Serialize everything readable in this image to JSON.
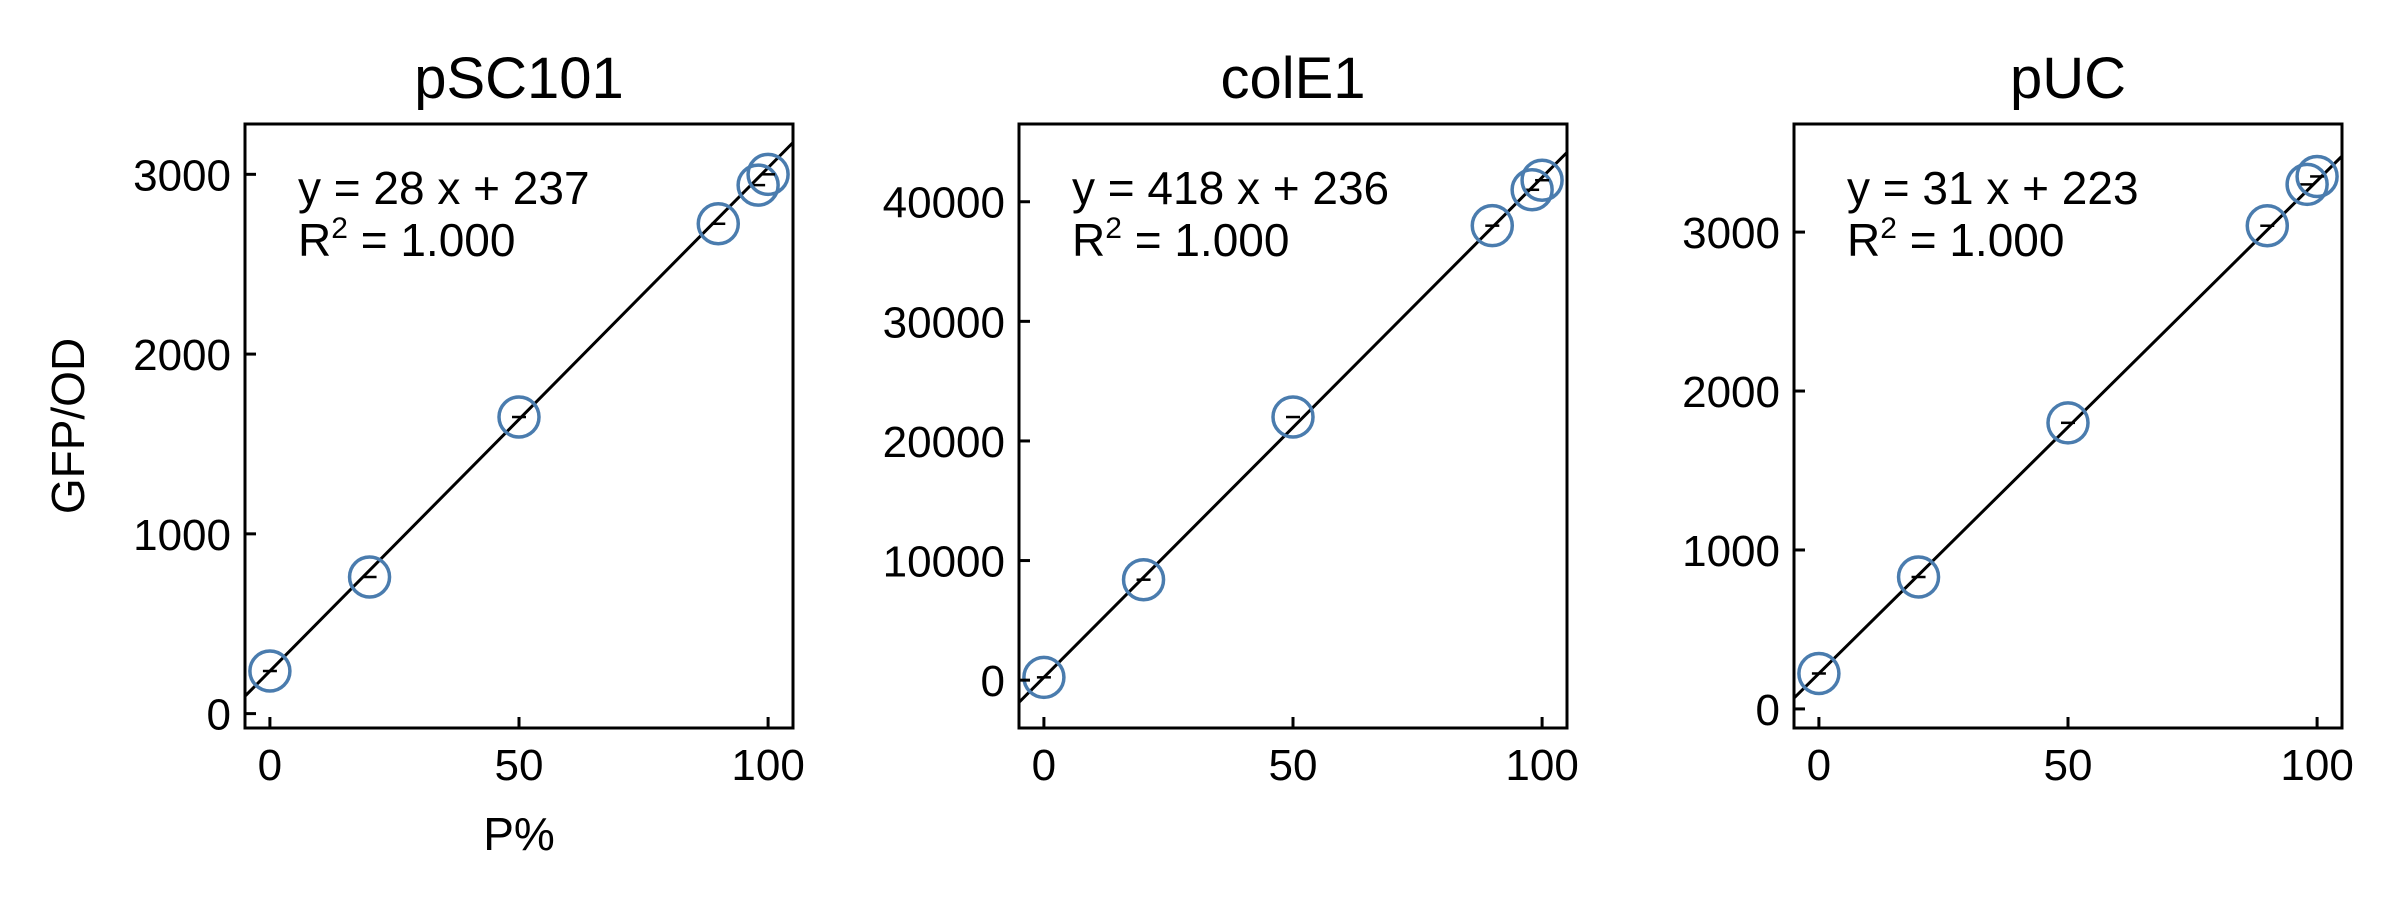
{
  "ylabel": "GFP/OD",
  "xlabel": "P%",
  "marker_color": "#4a7cae",
  "line_color": "#000000",
  "chart_data": [
    {
      "type": "scatter",
      "title": "pSC101",
      "x": [
        0,
        20,
        50,
        90,
        98,
        100
      ],
      "y": [
        237,
        760,
        1650,
        2725,
        2940,
        3000
      ],
      "fit": {
        "slope": 28,
        "intercept": 237
      },
      "equation": "y = 28 x + 237",
      "r2_prefix": "R",
      "r2_sup": "2",
      "r2_value": " = 1.000",
      "xlim": [
        -5,
        105
      ],
      "ylim": [
        -80,
        3280
      ],
      "xticks": [
        0,
        50,
        100
      ],
      "yticks": [
        0,
        1000,
        2000,
        3000
      ],
      "ylabel": "GFP/OD",
      "xlabel": "P%"
    },
    {
      "type": "scatter",
      "title": "colE1",
      "x": [
        0,
        20,
        50,
        90,
        98,
        100
      ],
      "y": [
        236,
        8400,
        22000,
        38000,
        41000,
        41800
      ],
      "fit": {
        "slope": 418,
        "intercept": 236
      },
      "equation": "y = 418 x + 236",
      "r2_prefix": "R",
      "r2_sup": "2",
      "r2_value": " = 1.000",
      "xlim": [
        -5,
        105
      ],
      "ylim": [
        -4000,
        46500
      ],
      "xticks": [
        0,
        50,
        100
      ],
      "yticks": [
        0,
        10000,
        20000,
        30000,
        40000
      ],
      "ylabel": "",
      "xlabel": ""
    },
    {
      "type": "scatter",
      "title": "pUC",
      "x": [
        0,
        20,
        50,
        90,
        98,
        100
      ],
      "y": [
        223,
        830,
        1800,
        3040,
        3300,
        3350
      ],
      "fit": {
        "slope": 31,
        "intercept": 223
      },
      "equation": "y = 31 x + 223",
      "r2_prefix": "R",
      "r2_sup": "2",
      "r2_value": " = 1.000",
      "xlim": [
        -5,
        105
      ],
      "ylim": [
        -120,
        3680
      ],
      "xticks": [
        0,
        50,
        100
      ],
      "yticks": [
        0,
        1000,
        2000,
        3000
      ],
      "ylabel": "",
      "xlabel": ""
    }
  ]
}
